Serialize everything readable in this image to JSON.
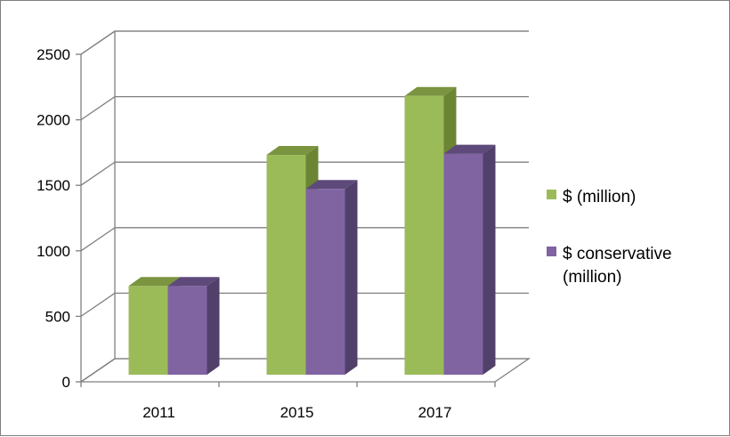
{
  "chart_data": {
    "type": "bar",
    "style": "3d-clustered-column",
    "title": "",
    "xlabel": "",
    "ylabel": "",
    "categories": [
      "2011",
      "2015",
      "2017"
    ],
    "series": [
      {
        "name": "$ (million)",
        "values": [
          800,
          1800,
          2250
        ],
        "color": "#9bbb59",
        "top_color": "#7a9440",
        "side_color": "#6b8534"
      },
      {
        "name": "$ conservative (million)",
        "legend_lines": [
          "$ conservative",
          "(million)"
        ],
        "values": [
          800,
          1540,
          1810
        ],
        "color": "#8064a2",
        "top_color": "#5e4a7a",
        "side_color": "#50406a"
      }
    ],
    "ylim": [
      0,
      2500
    ],
    "yticks": [
      "0",
      "500",
      "1000",
      "1500",
      "2000",
      "2500"
    ],
    "grid": true,
    "legend_position": "right"
  }
}
